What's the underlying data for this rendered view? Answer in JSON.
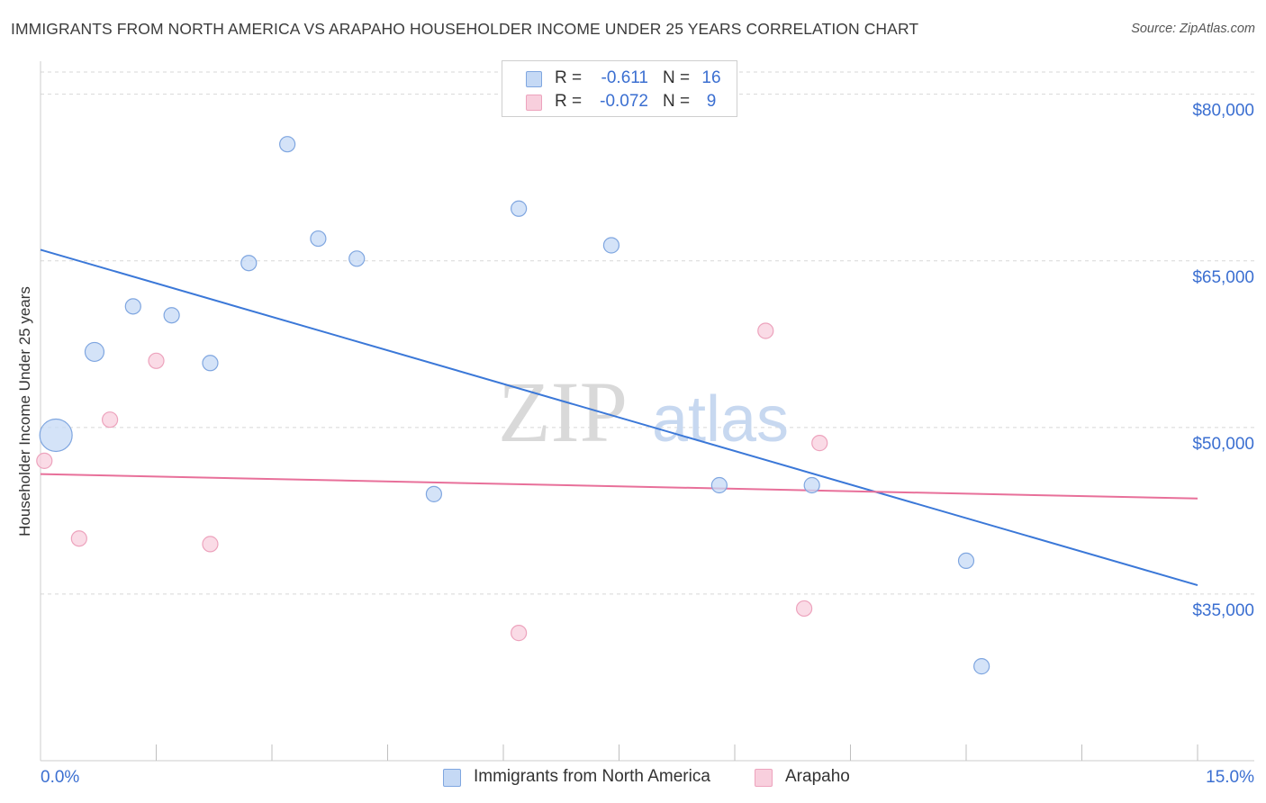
{
  "title": "IMMIGRANTS FROM NORTH AMERICA VS ARAPAHO HOUSEHOLDER INCOME UNDER 25 YEARS CORRELATION CHART",
  "source": "Source: ZipAtlas.com",
  "watermark": {
    "zip": "ZIP",
    "atlas": "atlas"
  },
  "colors": {
    "blue": "#3b78d8",
    "blue_fill": "#c5d9f5",
    "blue_stroke": "#7fa6e0",
    "pink": "#e8709a",
    "pink_fill": "#f8cfdd",
    "pink_stroke": "#eda3bd",
    "tick_label": "#3b6fd1",
    "grid": "#d7d7d7"
  },
  "legend": {
    "rows": [
      {
        "r_label": "R =",
        "r_value": "-0.611",
        "n_label": "N =",
        "n_value": "16"
      },
      {
        "r_label": "R =",
        "r_value": "-0.072",
        "n_label": "N =",
        "n_value": "9"
      }
    ]
  },
  "bottom_legend": {
    "series1": "Immigrants from North America",
    "series2": "Arapaho"
  },
  "chart_data": {
    "type": "scatter",
    "title": "IMMIGRANTS FROM NORTH AMERICA VS ARAPAHO HOUSEHOLDER INCOME UNDER 25 YEARS CORRELATION CHART",
    "xlabel": "",
    "ylabel": "Householder Income Under 25 years",
    "xlim": [
      0,
      15
    ],
    "ylim": [
      20000,
      82000
    ],
    "x_tick_labels": [
      "0.0%",
      "15.0%"
    ],
    "y_ticks": [
      35000,
      50000,
      65000,
      80000
    ],
    "y_tick_labels": [
      "$35,000",
      "$50,000",
      "$65,000",
      "$80,000"
    ],
    "series": [
      {
        "name": "Immigrants from North America",
        "points": [
          {
            "x": 0.2,
            "y": 49300,
            "size": "large"
          },
          {
            "x": 0.7,
            "y": 56800,
            "size": "medium"
          },
          {
            "x": 1.2,
            "y": 60900,
            "size": "small"
          },
          {
            "x": 1.7,
            "y": 60100,
            "size": "small"
          },
          {
            "x": 2.2,
            "y": 55800,
            "size": "small"
          },
          {
            "x": 2.7,
            "y": 64800,
            "size": "small"
          },
          {
            "x": 3.2,
            "y": 75500,
            "size": "small"
          },
          {
            "x": 3.6,
            "y": 67000,
            "size": "small"
          },
          {
            "x": 4.1,
            "y": 65200,
            "size": "small"
          },
          {
            "x": 5.1,
            "y": 44000,
            "size": "small"
          },
          {
            "x": 6.2,
            "y": 69700,
            "size": "small"
          },
          {
            "x": 7.4,
            "y": 66400,
            "size": "small"
          },
          {
            "x": 8.8,
            "y": 44800,
            "size": "small"
          },
          {
            "x": 10.0,
            "y": 44800,
            "size": "small"
          },
          {
            "x": 12.0,
            "y": 38000,
            "size": "small"
          },
          {
            "x": 12.2,
            "y": 28500,
            "size": "small"
          }
        ],
        "trend": {
          "x": [
            0,
            15
          ],
          "y": [
            66000,
            35800
          ]
        }
      },
      {
        "name": "Arapaho",
        "points": [
          {
            "x": 0.05,
            "y": 47000,
            "size": "small"
          },
          {
            "x": 0.5,
            "y": 40000,
            "size": "small"
          },
          {
            "x": 0.9,
            "y": 50700,
            "size": "small"
          },
          {
            "x": 1.5,
            "y": 56000,
            "size": "small"
          },
          {
            "x": 2.2,
            "y": 39500,
            "size": "small"
          },
          {
            "x": 6.2,
            "y": 31500,
            "size": "small"
          },
          {
            "x": 9.4,
            "y": 58700,
            "size": "small"
          },
          {
            "x": 9.9,
            "y": 33700,
            "size": "small"
          },
          {
            "x": 10.1,
            "y": 48600,
            "size": "small"
          }
        ],
        "trend": {
          "x": [
            0,
            15
          ],
          "y": [
            45800,
            43600
          ]
        }
      }
    ]
  }
}
